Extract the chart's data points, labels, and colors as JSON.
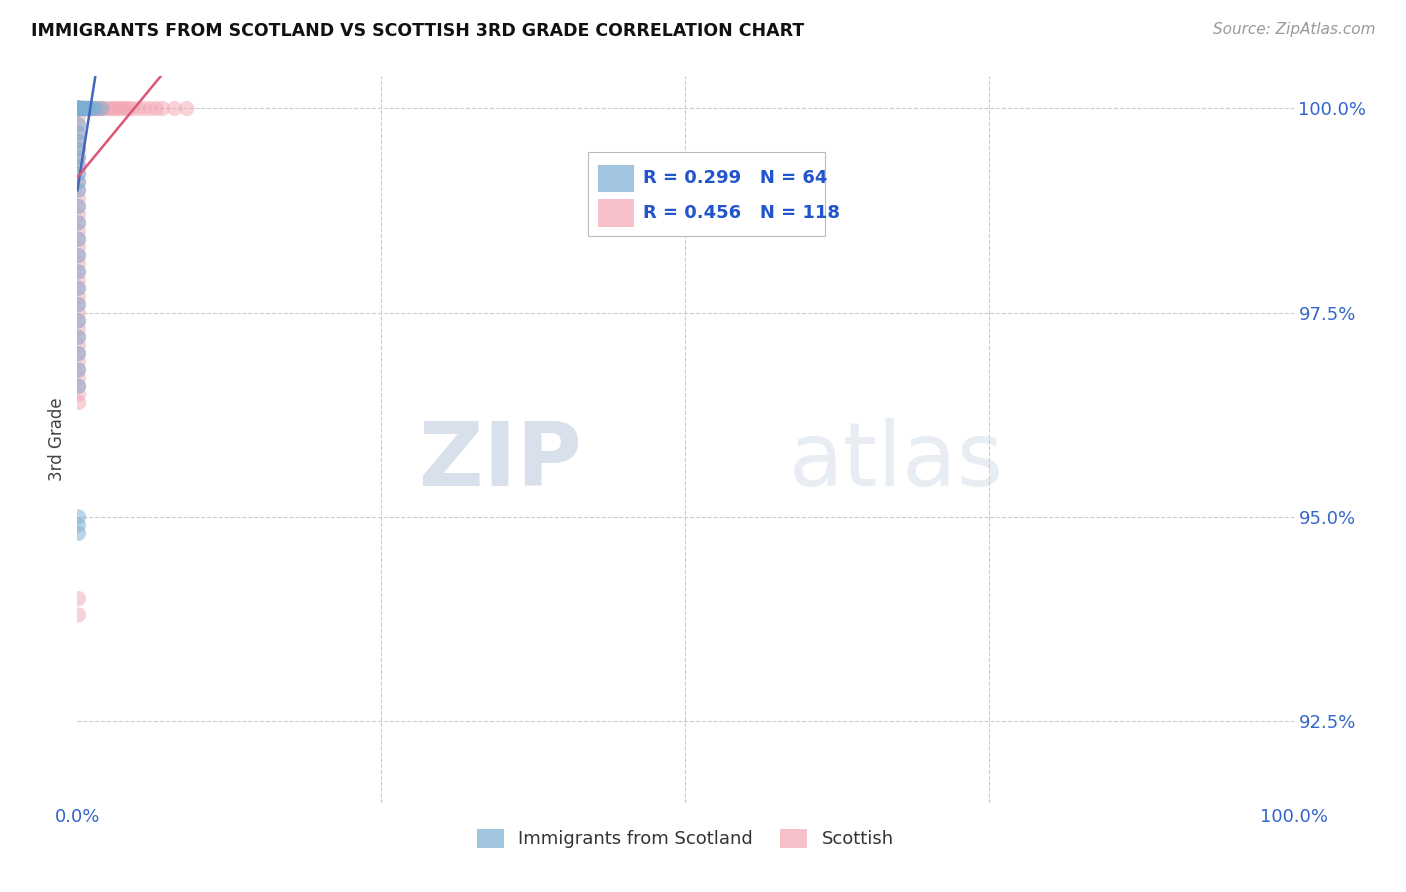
{
  "title": "IMMIGRANTS FROM SCOTLAND VS SCOTTISH 3RD GRADE CORRELATION CHART",
  "source": "Source: ZipAtlas.com",
  "ylabel": "3rd Grade",
  "ytick_labels": [
    "100.0%",
    "97.5%",
    "95.0%",
    "92.5%"
  ],
  "ytick_values": [
    1.0,
    0.975,
    0.95,
    0.925
  ],
  "legend_blue_label": "Immigrants from Scotland",
  "legend_pink_label": "Scottish",
  "legend_blue_R": "R = 0.299",
  "legend_blue_N": "N = 64",
  "legend_pink_R": "R = 0.456",
  "legend_pink_N": "N = 118",
  "blue_color": "#7BAFD4",
  "pink_color": "#F4A7B4",
  "blue_line_color": "#4466BB",
  "pink_line_color": "#DD5577",
  "watermark_zip": "ZIP",
  "watermark_atlas": "atlas",
  "background_color": "#FFFFFF",
  "blue_scatter_x": [
    0.001,
    0.001,
    0.001,
    0.001,
    0.001,
    0.001,
    0.001,
    0.001,
    0.001,
    0.001,
    0.001,
    0.001,
    0.001,
    0.001,
    0.001,
    0.001,
    0.001,
    0.001,
    0.001,
    0.001,
    0.002,
    0.002,
    0.002,
    0.002,
    0.002,
    0.003,
    0.003,
    0.003,
    0.004,
    0.004,
    0.005,
    0.005,
    0.006,
    0.007,
    0.008,
    0.009,
    0.01,
    0.012,
    0.015,
    0.02,
    0.001,
    0.001,
    0.001,
    0.001,
    0.001,
    0.001,
    0.001,
    0.001,
    0.001,
    0.001,
    0.001,
    0.001,
    0.001,
    0.001,
    0.001,
    0.001,
    0.001,
    0.001,
    0.001,
    0.001,
    0.001,
    0.001,
    0.001,
    0.001
  ],
  "blue_scatter_y": [
    1.0,
    1.0,
    1.0,
    1.0,
    1.0,
    1.0,
    1.0,
    1.0,
    1.0,
    1.0,
    1.0,
    1.0,
    1.0,
    1.0,
    1.0,
    1.0,
    1.0,
    1.0,
    1.0,
    1.0,
    1.0,
    1.0,
    1.0,
    1.0,
    1.0,
    1.0,
    1.0,
    1.0,
    1.0,
    1.0,
    1.0,
    1.0,
    1.0,
    1.0,
    1.0,
    1.0,
    1.0,
    1.0,
    1.0,
    1.0,
    0.998,
    0.997,
    0.996,
    0.995,
    0.994,
    0.993,
    0.992,
    0.991,
    0.99,
    0.988,
    0.986,
    0.984,
    0.982,
    0.98,
    0.978,
    0.976,
    0.974,
    0.972,
    0.97,
    0.968,
    0.966,
    0.95,
    0.949,
    0.948
  ],
  "pink_scatter_x": [
    0.001,
    0.001,
    0.001,
    0.001,
    0.001,
    0.001,
    0.001,
    0.001,
    0.001,
    0.001,
    0.001,
    0.001,
    0.001,
    0.001,
    0.001,
    0.001,
    0.001,
    0.001,
    0.001,
    0.001,
    0.001,
    0.001,
    0.001,
    0.001,
    0.001,
    0.001,
    0.001,
    0.001,
    0.001,
    0.001,
    0.002,
    0.002,
    0.002,
    0.002,
    0.002,
    0.002,
    0.003,
    0.003,
    0.003,
    0.003,
    0.004,
    0.004,
    0.004,
    0.005,
    0.005,
    0.005,
    0.006,
    0.006,
    0.007,
    0.007,
    0.008,
    0.008,
    0.009,
    0.01,
    0.01,
    0.011,
    0.012,
    0.013,
    0.015,
    0.016,
    0.018,
    0.02,
    0.022,
    0.025,
    0.028,
    0.03,
    0.032,
    0.035,
    0.038,
    0.04,
    0.042,
    0.045,
    0.05,
    0.055,
    0.06,
    0.065,
    0.07,
    0.08,
    0.09,
    0.001,
    0.001,
    0.001,
    0.001,
    0.001,
    0.001,
    0.001,
    0.001,
    0.001,
    0.001,
    0.001,
    0.001,
    0.001,
    0.001,
    0.001,
    0.001,
    0.001,
    0.001,
    0.001,
    0.001,
    0.001,
    0.001,
    0.001,
    0.001,
    0.001,
    0.001,
    0.001,
    0.001,
    0.001,
    0.001,
    0.001,
    0.001,
    0.001,
    0.001,
    0.001,
    0.001,
    0.001,
    0.001
  ],
  "pink_scatter_y": [
    1.0,
    1.0,
    1.0,
    1.0,
    1.0,
    1.0,
    1.0,
    1.0,
    1.0,
    1.0,
    1.0,
    1.0,
    1.0,
    1.0,
    1.0,
    1.0,
    1.0,
    1.0,
    1.0,
    1.0,
    1.0,
    1.0,
    1.0,
    1.0,
    1.0,
    1.0,
    1.0,
    1.0,
    1.0,
    1.0,
    1.0,
    1.0,
    1.0,
    1.0,
    1.0,
    1.0,
    1.0,
    1.0,
    1.0,
    1.0,
    1.0,
    1.0,
    1.0,
    1.0,
    1.0,
    1.0,
    1.0,
    1.0,
    1.0,
    1.0,
    1.0,
    1.0,
    1.0,
    1.0,
    1.0,
    1.0,
    1.0,
    1.0,
    1.0,
    1.0,
    1.0,
    1.0,
    1.0,
    1.0,
    1.0,
    1.0,
    1.0,
    1.0,
    1.0,
    1.0,
    1.0,
    1.0,
    1.0,
    1.0,
    1.0,
    1.0,
    1.0,
    1.0,
    1.0,
    0.999,
    0.998,
    0.997,
    0.996,
    0.995,
    0.994,
    0.993,
    0.992,
    0.991,
    0.99,
    0.989,
    0.988,
    0.987,
    0.986,
    0.985,
    0.984,
    0.983,
    0.982,
    0.981,
    0.98,
    0.979,
    0.978,
    0.977,
    0.976,
    0.975,
    0.974,
    0.973,
    0.972,
    0.971,
    0.97,
    0.969,
    0.968,
    0.967,
    0.966,
    0.965,
    0.964,
    0.94,
    0.938
  ],
  "xlim": [
    0.0,
    1.0
  ],
  "ylim": [
    0.915,
    1.004
  ],
  "marker_size": 120,
  "marker_alpha": 0.5
}
